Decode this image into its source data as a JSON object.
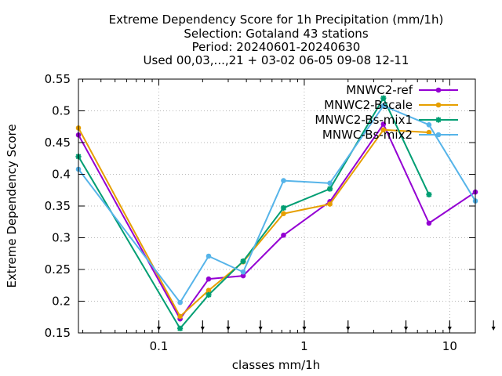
{
  "chart_data": {
    "type": "line",
    "title_lines": [
      "Extreme Dependency Score  for 1h Precipitation (mm/1h)",
      "Selection: Gotaland     43 stations",
      "Period: 20240601-20240630",
      "Used 00,03,...,21 + 03-02 06-05 09-08 12-11"
    ],
    "xlabel": "classes mm/1h",
    "ylabel": "Extreme Dependency Score",
    "x_scale": "log",
    "xlim": [
      0.028,
      15
    ],
    "ylim": [
      0.15,
      0.55
    ],
    "x_ticks": [
      {
        "value": 0.1,
        "label": "0.1"
      },
      {
        "value": 1,
        "label": "1"
      },
      {
        "value": 10,
        "label": "10"
      }
    ],
    "y_ticks": [
      {
        "value": 0.15,
        "label": "0.15"
      },
      {
        "value": 0.2,
        "label": "0.2"
      },
      {
        "value": 0.25,
        "label": "0.25"
      },
      {
        "value": 0.3,
        "label": "0.3"
      },
      {
        "value": 0.35,
        "label": "0.35"
      },
      {
        "value": 0.4,
        "label": "0.4"
      },
      {
        "value": 0.45,
        "label": "0.45"
      },
      {
        "value": 0.5,
        "label": "0.5"
      },
      {
        "value": 0.55,
        "label": "0.55"
      }
    ],
    "grid": true,
    "legend_position": "top-right",
    "class_markers": [
      0.1,
      0.2,
      0.3,
      0.5,
      1,
      2,
      5,
      10,
      20
    ],
    "series": [
      {
        "name": "MNWC2-ref",
        "color": "#9400d3",
        "marker": "circle",
        "points": [
          [
            0.028,
            0.462
          ],
          [
            0.14,
            0.172
          ],
          [
            0.22,
            0.235
          ],
          [
            0.38,
            0.24
          ],
          [
            0.72,
            0.304
          ],
          [
            1.5,
            0.357
          ],
          [
            3.5,
            0.479
          ],
          [
            7.2,
            0.323
          ],
          [
            15,
            0.372
          ]
        ]
      },
      {
        "name": "MNWC2-Bscale",
        "color": "#e69f00",
        "marker": "circle",
        "points": [
          [
            0.028,
            0.473
          ],
          [
            0.14,
            0.176
          ],
          [
            0.22,
            0.217
          ],
          [
            0.38,
            0.262
          ],
          [
            0.72,
            0.338
          ],
          [
            1.5,
            0.353
          ],
          [
            3.5,
            0.47
          ],
          [
            7.2,
            0.466
          ]
        ]
      },
      {
        "name": "MNWC2-Bs-mix1",
        "color": "#009e73",
        "marker": "star",
        "points": [
          [
            0.028,
            0.428
          ],
          [
            0.14,
            0.157
          ],
          [
            0.22,
            0.21
          ],
          [
            0.38,
            0.263
          ],
          [
            0.72,
            0.347
          ],
          [
            1.5,
            0.377
          ],
          [
            3.5,
            0.52
          ],
          [
            7.2,
            0.368
          ]
        ]
      },
      {
        "name": "MNWC-Bs-mix2",
        "color": "#56b4e9",
        "marker": "circle",
        "points": [
          [
            0.028,
            0.408
          ],
          [
            0.14,
            0.198
          ],
          [
            0.22,
            0.271
          ],
          [
            0.38,
            0.246
          ],
          [
            0.72,
            0.39
          ],
          [
            1.5,
            0.386
          ],
          [
            3.5,
            0.508
          ],
          [
            7.2,
            0.478
          ],
          [
            15,
            0.358
          ]
        ]
      }
    ]
  }
}
